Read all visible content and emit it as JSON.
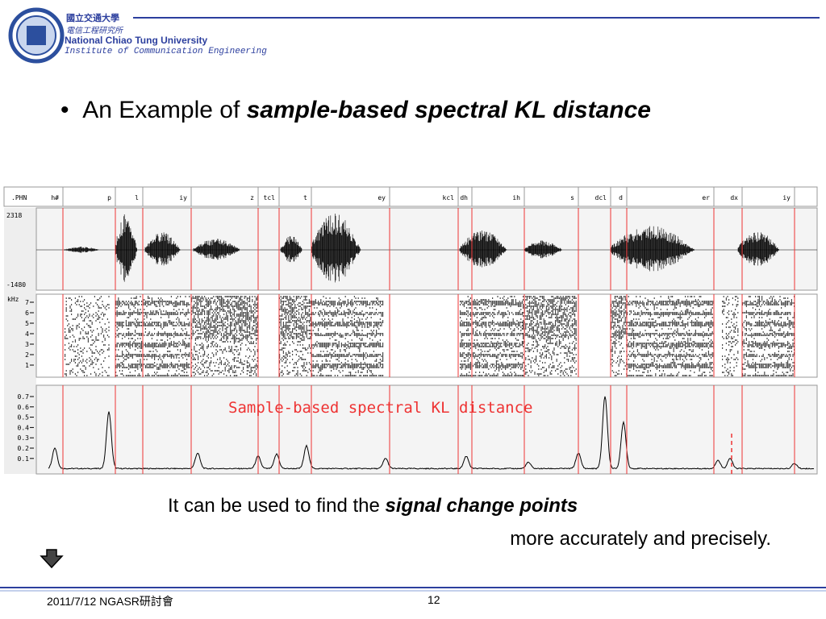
{
  "header": {
    "university_zh": "國立交通大學",
    "institute_zh": "電信工程研究所",
    "university_en": "National Chiao Tung University",
    "institute_en": "Institute of Communication Engineering"
  },
  "bullet": {
    "prefix": "An Example of ",
    "emphasis": "sample-based spectral KL distance"
  },
  "figure": {
    "tier_label": ".PHN",
    "phonemes": [
      "h#",
      "p",
      "l",
      "iy",
      "z",
      "tcl",
      "t",
      "ey",
      "kcl",
      "dh",
      "ih",
      "s",
      "dcl",
      "d",
      "er",
      "dx",
      "iy"
    ],
    "waveform_max": "2318",
    "waveform_min": "-1480",
    "spectrogram_unit": "kHz",
    "spectrogram_ticks": [
      "7",
      "6",
      "5",
      "4",
      "3",
      "2",
      "1"
    ],
    "kl_ticks": [
      "0.7",
      "0.6",
      "0.5",
      "0.4",
      "0.3",
      "0.2",
      "0.1"
    ],
    "annotation": "Sample-based spectral KL distance"
  },
  "note": {
    "line1_prefix": "It can be used to find the ",
    "line1_emphasis": "signal change points",
    "line2": "more accurately and precisely."
  },
  "footer": {
    "date_event": "2011/7/12 NGASR研討會",
    "page": "12"
  }
}
